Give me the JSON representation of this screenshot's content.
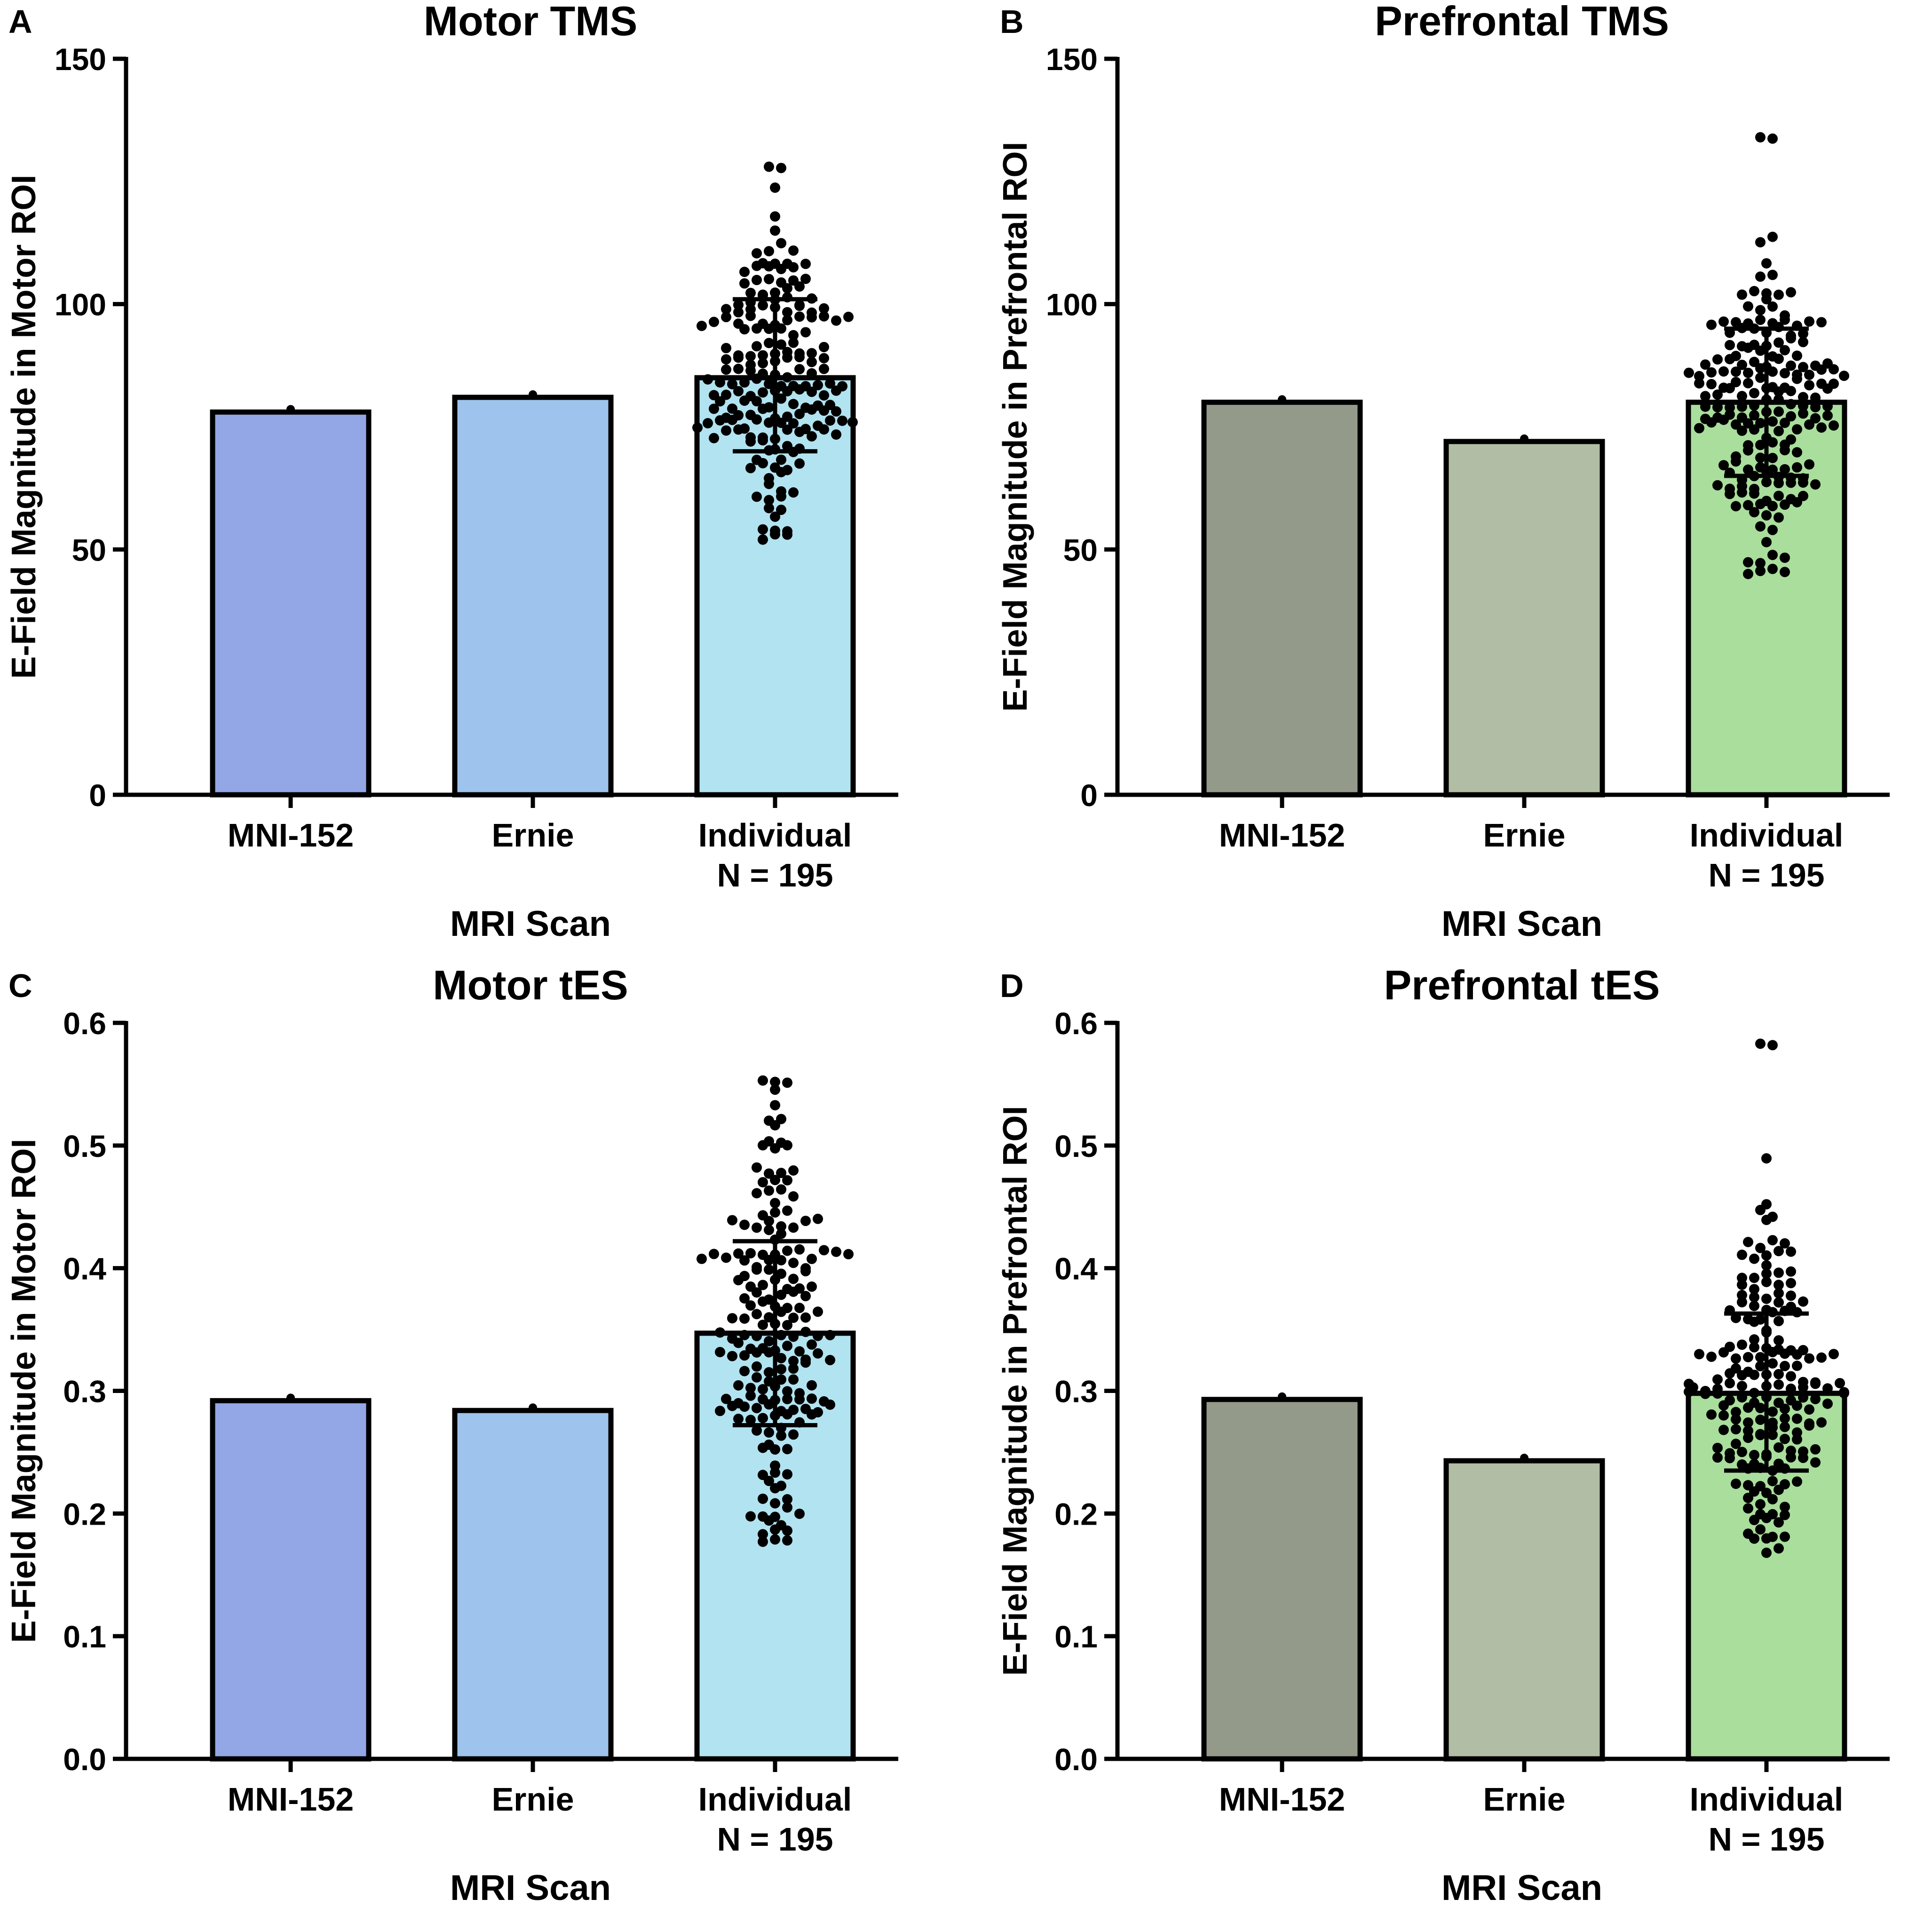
{
  "figure": {
    "x_axis_label": "MRI Scan",
    "categories": [
      "MNI-152",
      "Ernie",
      "Individual"
    ],
    "individual_sublabel": "N = 195"
  },
  "chart_data": [
    {
      "panel": "A",
      "type": "bar",
      "title": "Motor TMS",
      "ylabel": "E-Field Magnitude in Motor ROI",
      "xlabel": "MRI Scan",
      "ylim": [
        0,
        150
      ],
      "yticks": [
        "0",
        "50",
        "100",
        "150"
      ],
      "ytick_values": [
        0,
        50,
        100,
        150
      ],
      "categories": [
        "MNI-152",
        "Ernie",
        "Individual"
      ],
      "values": [
        78,
        81,
        85
      ],
      "colors": [
        "#93a6e6",
        "#9ec3ec",
        "#b2e3f0"
      ],
      "individual": {
        "n": 195,
        "mean": 85,
        "sd_low": 70,
        "sd_high": 101,
        "min": 52,
        "max": 128
      }
    },
    {
      "panel": "B",
      "type": "bar",
      "title": "Prefrontal TMS",
      "ylabel": "E-Field Magnitude in Prefrontal ROI",
      "xlabel": "MRI Scan",
      "ylim": [
        0,
        150
      ],
      "yticks": [
        "0",
        "50",
        "100",
        "150"
      ],
      "ytick_values": [
        0,
        50,
        100,
        150
      ],
      "categories": [
        "MNI-152",
        "Ernie",
        "Individual"
      ],
      "values": [
        80,
        72,
        80
      ],
      "colors": [
        "#949a89",
        "#b1bea5",
        "#a9de9c"
      ],
      "individual": {
        "n": 195,
        "mean": 80,
        "sd_low": 65,
        "sd_high": 95,
        "min": 45,
        "max": 134
      }
    },
    {
      "panel": "C",
      "type": "bar",
      "title": "Motor tES",
      "ylabel": "E-Field Magnitude in Motor ROI",
      "xlabel": "MRI Scan",
      "ylim": [
        0,
        0.6
      ],
      "yticks": [
        "0.0",
        "0.1",
        "0.2",
        "0.3",
        "0.4",
        "0.5",
        "0.6"
      ],
      "ytick_values": [
        0,
        0.1,
        0.2,
        0.3,
        0.4,
        0.5,
        0.6
      ],
      "categories": [
        "MNI-152",
        "Ernie",
        "Individual"
      ],
      "values": [
        0.292,
        0.284,
        0.347
      ],
      "colors": [
        "#93a6e6",
        "#9ec3ec",
        "#b2e3f0"
      ],
      "individual": {
        "n": 195,
        "mean": 0.347,
        "sd_low": 0.272,
        "sd_high": 0.422,
        "min": 0.177,
        "max": 0.553
      }
    },
    {
      "panel": "D",
      "type": "bar",
      "title": "Prefrontal tES",
      "ylabel": "E-Field Magnitude in Prefrontal ROI",
      "xlabel": "MRI Scan",
      "ylim": [
        0,
        0.6
      ],
      "yticks": [
        "0.0",
        "0.1",
        "0.2",
        "0.3",
        "0.4",
        "0.5",
        "0.6"
      ],
      "ytick_values": [
        0,
        0.1,
        0.2,
        0.3,
        0.4,
        0.5,
        0.6
      ],
      "categories": [
        "MNI-152",
        "Ernie",
        "Individual"
      ],
      "values": [
        0.293,
        0.243,
        0.298
      ],
      "colors": [
        "#949a89",
        "#b1bea5",
        "#a9de9c"
      ],
      "individual": {
        "n": 195,
        "mean": 0.298,
        "sd_low": 0.235,
        "sd_high": 0.363,
        "min": 0.168,
        "max": 0.583
      }
    }
  ]
}
